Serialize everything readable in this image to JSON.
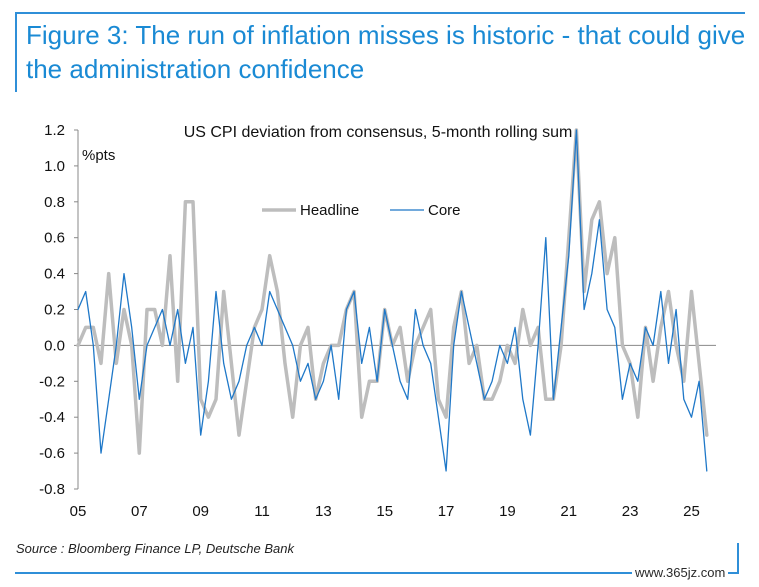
{
  "figure": {
    "title": "Figure 3: The run of inflation misses is historic - that could give the administration confidence",
    "source": "Source : Bloomberg Finance LP, Deutsche Bank",
    "watermark": "www.365jz.com"
  },
  "colors": {
    "accent": "#1a8ad4",
    "headline": "#bdbdbd",
    "core": "#1f78c8"
  },
  "chart_data": {
    "type": "line",
    "title": "US CPI deviation from consensus, 5-month rolling sum",
    "ylabel": "%pts",
    "xlim": [
      2005.0,
      2025.8
    ],
    "ylim": [
      -0.8,
      1.2
    ],
    "x_ticks": [
      "05",
      "07",
      "09",
      "11",
      "13",
      "15",
      "17",
      "19",
      "21",
      "23",
      "25"
    ],
    "x_tick_values": [
      2005,
      2007,
      2009,
      2011,
      2013,
      2015,
      2017,
      2019,
      2021,
      2023,
      2025
    ],
    "y_ticks": [
      "1.2",
      "1.0",
      "0.8",
      "0.6",
      "0.4",
      "0.2",
      "0.0",
      "-0.2",
      "-0.4",
      "-0.6",
      "-0.8"
    ],
    "y_tick_values": [
      1.2,
      1.0,
      0.8,
      0.6,
      0.4,
      0.2,
      0.0,
      -0.2,
      -0.4,
      -0.6,
      -0.8
    ],
    "grid": false,
    "legend": {
      "position": "top-center",
      "entries": [
        "Headline",
        "Core"
      ]
    },
    "series": [
      {
        "name": "Headline",
        "x": [
          2005.0,
          2005.25,
          2005.5,
          2005.75,
          2006.0,
          2006.25,
          2006.5,
          2006.75,
          2007.0,
          2007.25,
          2007.5,
          2007.75,
          2008.0,
          2008.25,
          2008.5,
          2008.75,
          2009.0,
          2009.25,
          2009.5,
          2009.75,
          2010.0,
          2010.25,
          2010.5,
          2010.75,
          2011.0,
          2011.25,
          2011.5,
          2011.75,
          2012.0,
          2012.25,
          2012.5,
          2012.75,
          2013.0,
          2013.25,
          2013.5,
          2013.75,
          2014.0,
          2014.25,
          2014.5,
          2014.75,
          2015.0,
          2015.25,
          2015.5,
          2015.75,
          2016.0,
          2016.25,
          2016.5,
          2016.75,
          2017.0,
          2017.25,
          2017.5,
          2017.75,
          2018.0,
          2018.25,
          2018.5,
          2018.75,
          2019.0,
          2019.25,
          2019.5,
          2019.75,
          2020.0,
          2020.25,
          2020.5,
          2020.75,
          2021.0,
          2021.25,
          2021.5,
          2021.75,
          2022.0,
          2022.25,
          2022.5,
          2022.75,
          2023.0,
          2023.25,
          2023.5,
          2023.75,
          2024.0,
          2024.25,
          2024.5,
          2024.75,
          2025.0,
          2025.25,
          2025.5
        ],
        "values": [
          0.0,
          0.1,
          0.1,
          -0.1,
          0.4,
          -0.1,
          0.2,
          0.0,
          -0.6,
          0.2,
          0.2,
          0.0,
          0.5,
          -0.2,
          0.8,
          0.8,
          -0.3,
          -0.4,
          -0.3,
          0.3,
          -0.1,
          -0.5,
          -0.2,
          0.1,
          0.2,
          0.5,
          0.3,
          -0.1,
          -0.4,
          0.0,
          0.1,
          -0.3,
          -0.1,
          0.0,
          0.0,
          0.2,
          0.3,
          -0.4,
          -0.2,
          -0.2,
          0.2,
          0.0,
          0.1,
          -0.2,
          0.0,
          0.1,
          0.2,
          -0.3,
          -0.4,
          0.1,
          0.3,
          -0.1,
          0.0,
          -0.3,
          -0.3,
          -0.2,
          0.0,
          -0.1,
          0.2,
          0.0,
          0.1,
          -0.3,
          -0.3,
          0.0,
          0.6,
          1.2,
          0.3,
          0.7,
          0.8,
          0.4,
          0.6,
          0.0,
          -0.1,
          -0.4,
          0.1,
          -0.2,
          0.1,
          0.3,
          0.0,
          -0.2,
          0.3,
          -0.1,
          -0.5
        ]
      },
      {
        "name": "Core",
        "x": [
          2005.0,
          2005.25,
          2005.5,
          2005.75,
          2006.0,
          2006.25,
          2006.5,
          2006.75,
          2007.0,
          2007.25,
          2007.5,
          2007.75,
          2008.0,
          2008.25,
          2008.5,
          2008.75,
          2009.0,
          2009.25,
          2009.5,
          2009.75,
          2010.0,
          2010.25,
          2010.5,
          2010.75,
          2011.0,
          2011.25,
          2011.5,
          2011.75,
          2012.0,
          2012.25,
          2012.5,
          2012.75,
          2013.0,
          2013.25,
          2013.5,
          2013.75,
          2014.0,
          2014.25,
          2014.5,
          2014.75,
          2015.0,
          2015.25,
          2015.5,
          2015.75,
          2016.0,
          2016.25,
          2016.5,
          2016.75,
          2017.0,
          2017.25,
          2017.5,
          2017.75,
          2018.0,
          2018.25,
          2018.5,
          2018.75,
          2019.0,
          2019.25,
          2019.5,
          2019.75,
          2020.0,
          2020.25,
          2020.5,
          2020.75,
          2021.0,
          2021.25,
          2021.5,
          2021.75,
          2022.0,
          2022.25,
          2022.5,
          2022.75,
          2023.0,
          2023.25,
          2023.5,
          2023.75,
          2024.0,
          2024.25,
          2024.5,
          2024.75,
          2025.0,
          2025.25,
          2025.5
        ],
        "values": [
          0.2,
          0.3,
          0.0,
          -0.6,
          -0.3,
          0.0,
          0.4,
          0.1,
          -0.3,
          0.0,
          0.1,
          0.2,
          0.0,
          0.2,
          -0.1,
          0.1,
          -0.5,
          -0.2,
          0.3,
          -0.1,
          -0.3,
          -0.2,
          0.0,
          0.1,
          0.0,
          0.3,
          0.2,
          0.1,
          0.0,
          -0.2,
          -0.1,
          -0.3,
          -0.2,
          0.0,
          -0.3,
          0.2,
          0.3,
          -0.1,
          0.1,
          -0.2,
          0.2,
          0.0,
          -0.2,
          -0.3,
          0.2,
          0.0,
          -0.1,
          -0.4,
          -0.7,
          0.0,
          0.3,
          0.1,
          -0.1,
          -0.3,
          -0.2,
          0.0,
          -0.1,
          0.1,
          -0.3,
          -0.5,
          0.0,
          0.6,
          -0.3,
          0.1,
          0.5,
          1.2,
          0.2,
          0.4,
          0.7,
          0.2,
          0.1,
          -0.3,
          -0.1,
          -0.2,
          0.1,
          0.0,
          0.3,
          -0.1,
          0.2,
          -0.3,
          -0.4,
          -0.2,
          -0.7
        ]
      }
    ]
  }
}
